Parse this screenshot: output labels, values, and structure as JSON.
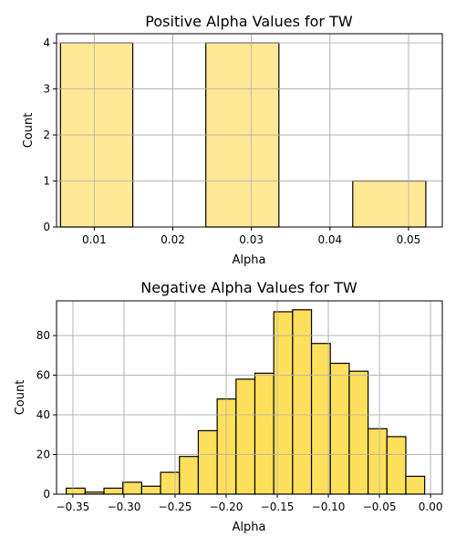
{
  "chart_data": [
    {
      "type": "bar",
      "subtype": "histogram",
      "title": "Positive Alpha Values for TW",
      "xlabel": "Alpha",
      "ylabel": "Count",
      "xlim": [
        0.0052,
        0.0543
      ],
      "ylim": [
        0,
        4.2
      ],
      "xticks": [
        0.01,
        0.02,
        0.03,
        0.04,
        0.05
      ],
      "xtick_labels": [
        "0.01",
        "0.02",
        "0.03",
        "0.04",
        "0.05"
      ],
      "yticks": [
        0,
        1,
        2,
        3,
        4
      ],
      "ytick_labels": [
        "0",
        "1",
        "2",
        "3",
        "4"
      ],
      "bins": [
        {
          "x0": 0.0057,
          "x1": 0.0149,
          "count": 4
        },
        {
          "x0": 0.0149,
          "x1": 0.0242,
          "count": 0
        },
        {
          "x0": 0.0242,
          "x1": 0.0335,
          "count": 4
        },
        {
          "x0": 0.0335,
          "x1": 0.0429,
          "count": 0
        },
        {
          "x0": 0.0429,
          "x1": 0.0522,
          "count": 1
        }
      ],
      "color": "#ffe896",
      "grid": true
    },
    {
      "type": "bar",
      "subtype": "histogram",
      "title": "Negative Alpha Values for TW",
      "xlabel": "Alpha",
      "ylabel": "Count",
      "xlim": [
        -0.366,
        0.0115
      ],
      "ylim": [
        0,
        97.5
      ],
      "xticks": [
        -0.35,
        -0.3,
        -0.25,
        -0.2,
        -0.15,
        -0.1,
        -0.05,
        0.0
      ],
      "xtick_labels": [
        "−0.35",
        "−0.30",
        "−0.25",
        "−0.20",
        "−0.15",
        "−0.10",
        "−0.05",
        "0.00"
      ],
      "yticks": [
        0,
        20,
        40,
        60,
        80
      ],
      "ytick_labels": [
        "0",
        "20",
        "40",
        "60",
        "80"
      ],
      "bin_start": -0.3565,
      "bin_width": 0.01846,
      "counts": [
        3,
        1,
        3,
        6,
        4,
        11,
        19,
        32,
        48,
        58,
        61,
        92,
        93,
        76,
        66,
        62,
        33,
        29,
        9
      ],
      "color": "#ffe05c",
      "grid": true
    }
  ]
}
